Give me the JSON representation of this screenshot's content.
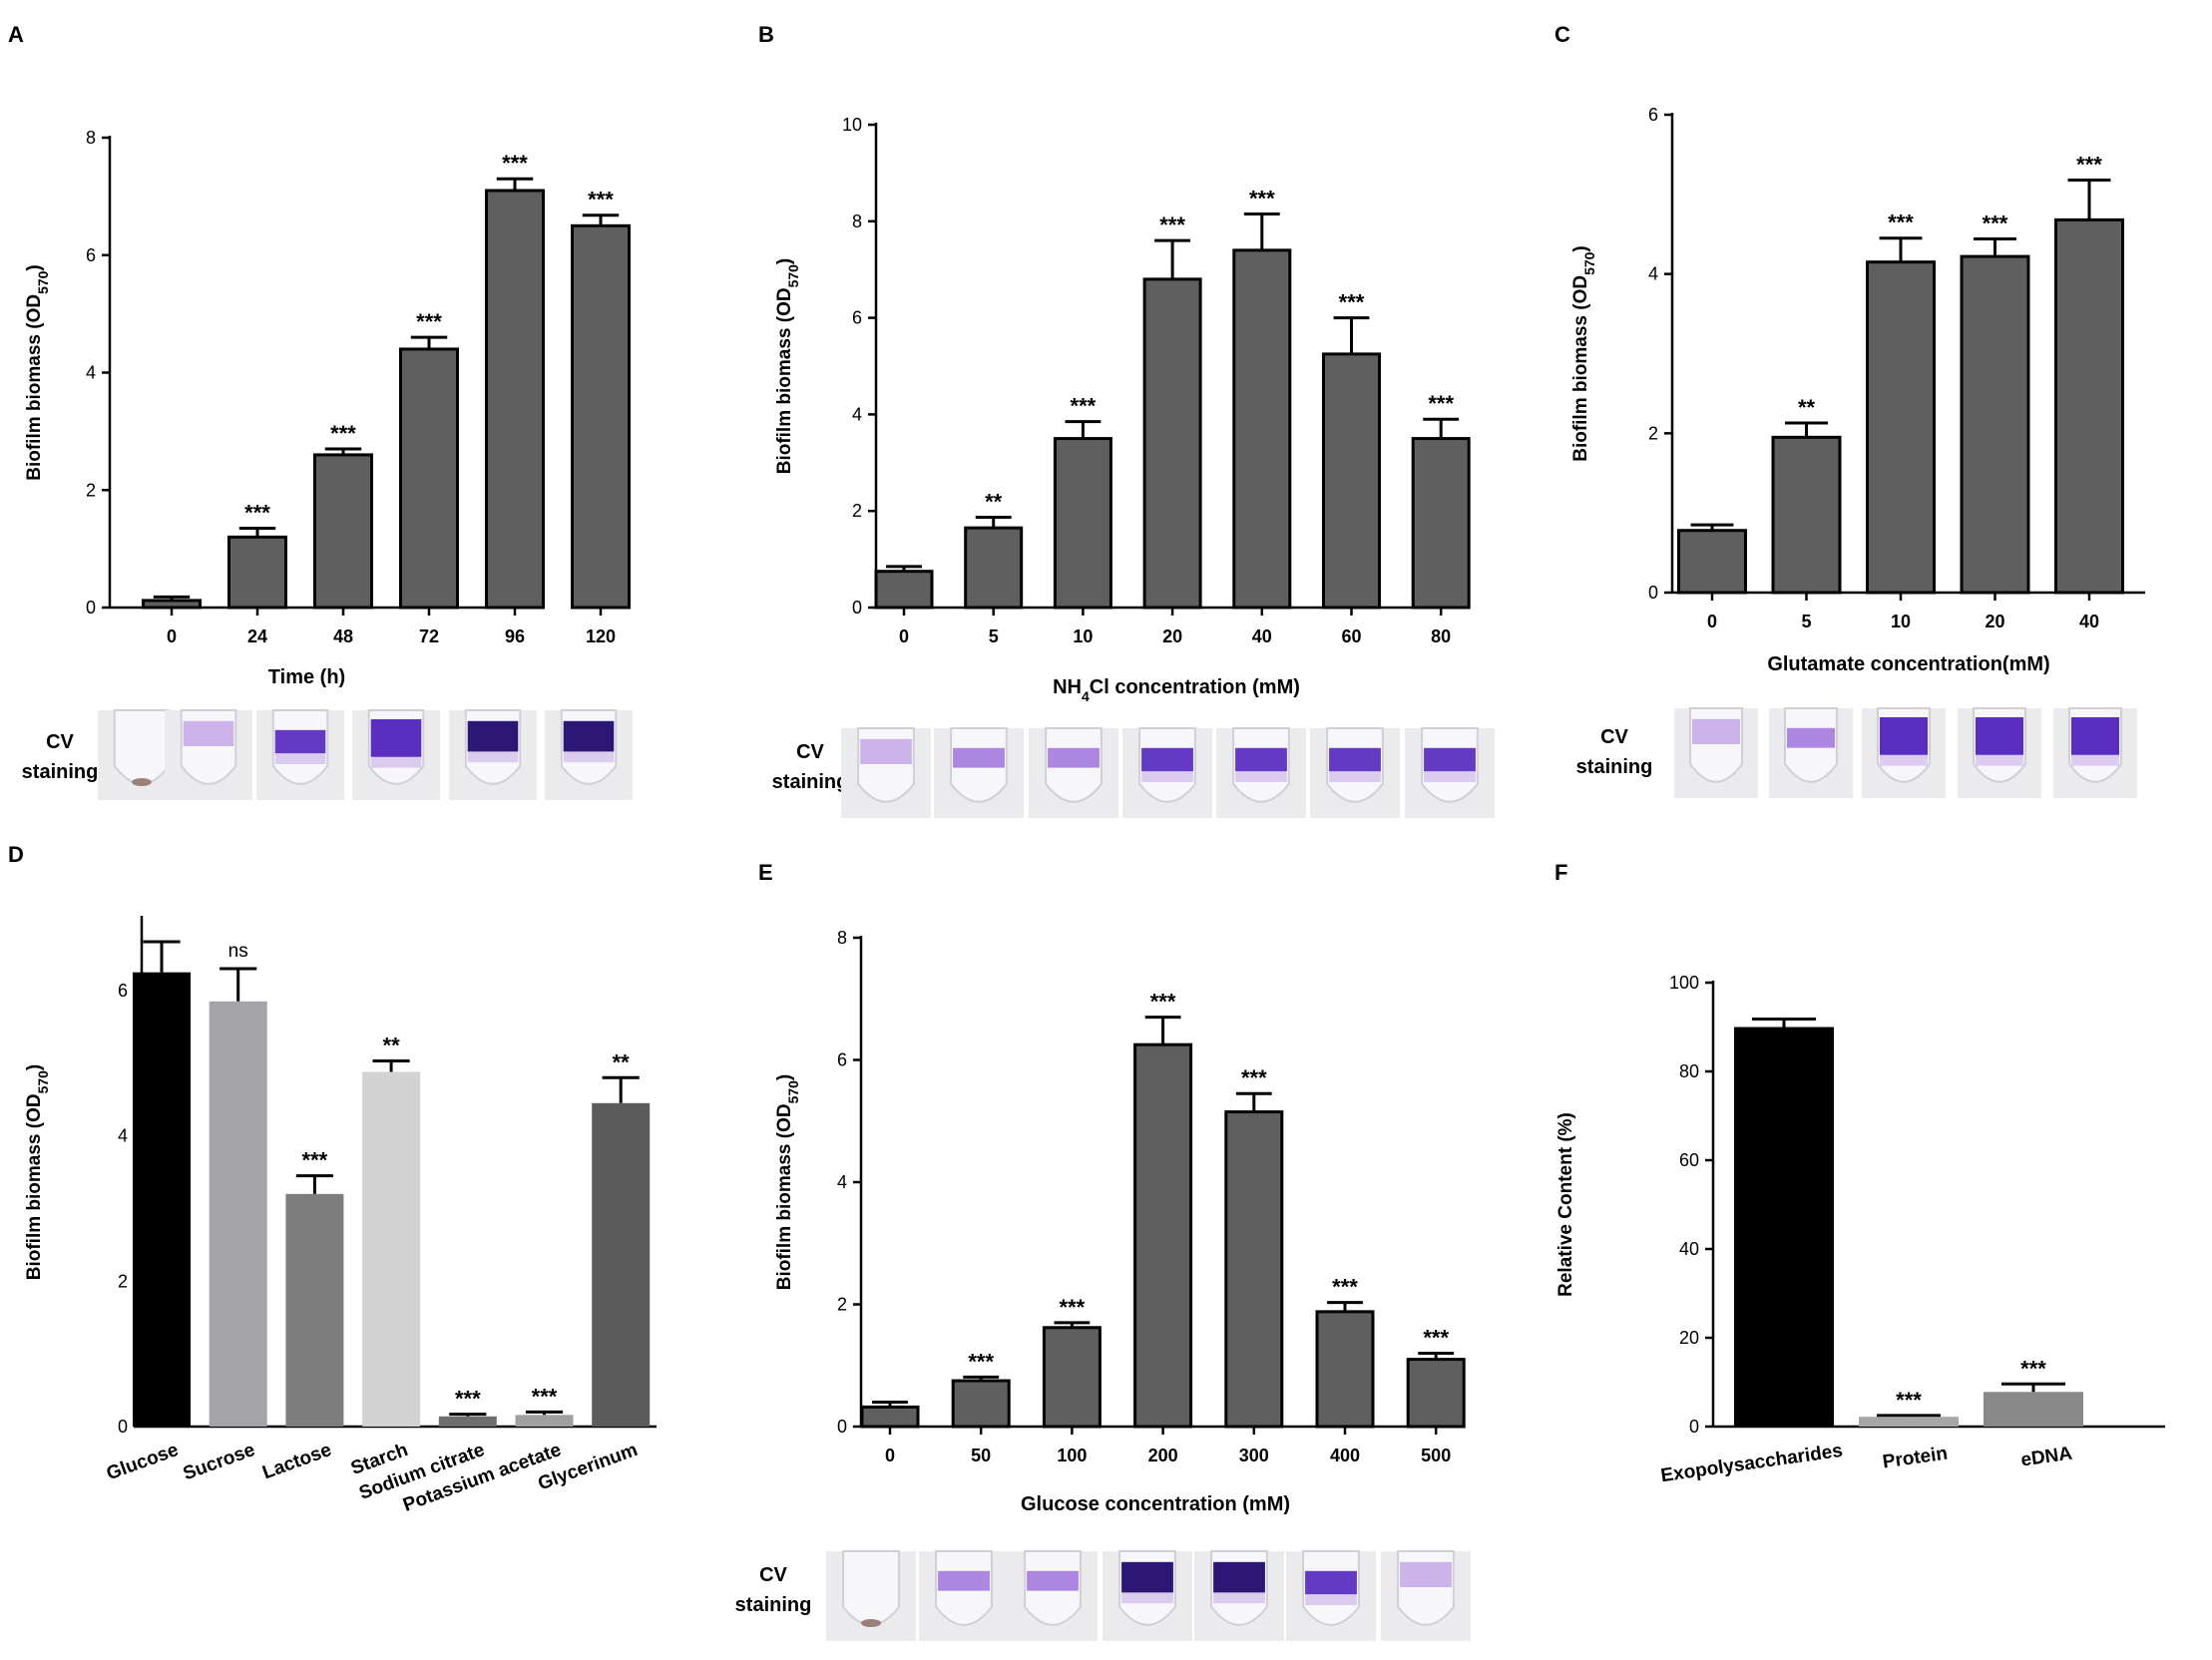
{
  "colors": {
    "bar_dark": "#5f5f5f",
    "glucose": "#000000",
    "sucrose": "#a3a3a8",
    "lactose": "#7d7d7d",
    "starch": "#d2d2d2",
    "citrate": "#6e6e6e",
    "acetate": "#a0a0a0",
    "glycerinum": "#5c5c5c",
    "eps": "#000000",
    "protein": "#a6a6a6",
    "edna": "#888888",
    "tube_bg": "#ebebee",
    "tube_glass": "#f7f7fa",
    "purple_dark": "#2c1676",
    "purple_mid": "#5a2fc0",
    "purple_light": "#a97fe0",
    "purple_faint": "#c4a8e6"
  },
  "staining_label": [
    "CV",
    "staining"
  ],
  "chart_data": [
    {
      "id": "A",
      "panel_label": "A",
      "type": "bar",
      "categories": [
        "0",
        "24",
        "48",
        "72",
        "96",
        "120"
      ],
      "values": [
        0.12,
        1.2,
        2.6,
        4.4,
        7.1,
        6.5
      ],
      "errors": [
        0.06,
        0.15,
        0.1,
        0.2,
        0.2,
        0.18
      ],
      "significance": [
        "",
        "***",
        "***",
        "***",
        "***",
        "***"
      ],
      "ylim": [
        0,
        8
      ],
      "yticks": [
        0,
        2,
        4,
        6,
        8
      ],
      "ylabel": "Biofilm biomass (OD570)",
      "ylabel_main": "Biofilm biomass (OD",
      "ylabel_sub": "570",
      "ylabel_end": ")",
      "xlabel": "Time (h)",
      "staining": [
        0,
        1,
        3,
        4,
        5,
        5
      ]
    },
    {
      "id": "B",
      "panel_label": "B",
      "type": "bar",
      "categories": [
        "0",
        "5",
        "10",
        "20",
        "40",
        "60",
        "80"
      ],
      "values": [
        0.75,
        1.65,
        3.5,
        6.8,
        7.4,
        5.25,
        3.5
      ],
      "errors": [
        0.1,
        0.22,
        0.35,
        0.8,
        0.75,
        0.75,
        0.4
      ],
      "significance": [
        "",
        "**",
        "***",
        "***",
        "***",
        "***",
        "***"
      ],
      "ylim": [
        0,
        10
      ],
      "yticks": [
        0,
        2,
        4,
        6,
        8,
        10
      ],
      "ylabel": "Biofilm biomass (OD570)",
      "ylabel_main": "Biofilm biomass (OD",
      "ylabel_sub": "570",
      "ylabel_end": ")",
      "xlabel": "NH4Cl concentration (mM)",
      "xlabel_pre": "NH",
      "xlabel_sub": "4",
      "xlabel_post": "Cl concentration (mM)",
      "staining": [
        1,
        2,
        2,
        3,
        3,
        3,
        3
      ]
    },
    {
      "id": "C",
      "panel_label": "C",
      "type": "bar",
      "categories": [
        "0",
        "5",
        "10",
        "20",
        "40"
      ],
      "values": [
        0.78,
        1.95,
        4.15,
        4.22,
        4.68
      ],
      "errors": [
        0.07,
        0.18,
        0.3,
        0.22,
        0.5
      ],
      "significance": [
        "",
        "**",
        "***",
        "***",
        "***"
      ],
      "ylim": [
        0,
        6
      ],
      "yticks": [
        0,
        2,
        4,
        6
      ],
      "ylabel": "Biofilm biomass (OD570)",
      "ylabel_main": "Biofilm biomass (OD",
      "ylabel_sub": "570",
      "ylabel_end": ")",
      "xlabel": "Glutamate concentration(mM)",
      "staining": [
        1,
        2,
        4,
        4,
        4
      ]
    },
    {
      "id": "D",
      "panel_label": "D",
      "type": "bar",
      "categories": [
        "Glucose",
        "Sucrose",
        "Lactose",
        "Starch",
        "Sodium citrate",
        "Potassium acetate",
        "Glycerinum"
      ],
      "values": [
        6.25,
        5.85,
        3.2,
        4.88,
        0.14,
        0.16,
        4.45
      ],
      "errors": [
        0.42,
        0.45,
        0.25,
        0.15,
        0.03,
        0.04,
        0.35
      ],
      "significance": [
        "",
        "ns",
        "***",
        "**",
        "***",
        "***",
        "**"
      ],
      "ylim": [
        0,
        7
      ],
      "yticks": [
        0,
        2,
        4,
        6
      ],
      "ylabel": "Biofilm biomass (OD570)",
      "ylabel_main": "Biofilm biomass (OD",
      "ylabel_sub": "570",
      "ylabel_end": ")",
      "xlabel": "",
      "bar_colors": [
        "glucose",
        "sucrose",
        "lactose",
        "starch",
        "citrate",
        "acetate",
        "glycerinum"
      ]
    },
    {
      "id": "E",
      "panel_label": "E",
      "type": "bar",
      "categories": [
        "0",
        "50",
        "100",
        "200",
        "300",
        "400",
        "500"
      ],
      "values": [
        0.32,
        0.75,
        1.62,
        6.25,
        5.15,
        1.88,
        1.1
      ],
      "errors": [
        0.08,
        0.06,
        0.08,
        0.45,
        0.3,
        0.15,
        0.1
      ],
      "significance": [
        "",
        "***",
        "***",
        "***",
        "***",
        "***",
        "***"
      ],
      "ylim": [
        0,
        8
      ],
      "yticks": [
        0,
        2,
        4,
        6,
        8
      ],
      "ylabel": "Biofilm biomass (OD570)",
      "ylabel_main": "Biofilm biomass (OD",
      "ylabel_sub": "570",
      "ylabel_end": ")",
      "xlabel": "Glucose concentration (mM)",
      "staining": [
        0,
        2,
        2,
        5,
        5,
        3,
        1
      ]
    },
    {
      "id": "F",
      "panel_label": "F",
      "type": "bar",
      "categories": [
        "Exopolysaccharides",
        "Protein",
        "eDNA"
      ],
      "values": [
        90,
        2.2,
        7.8
      ],
      "errors": [
        1.8,
        0.3,
        1.8
      ],
      "significance": [
        "",
        "***",
        "***"
      ],
      "ylim": [
        0,
        100
      ],
      "yticks": [
        0,
        20,
        40,
        60,
        80,
        100
      ],
      "ylabel": "Relative Content (%)",
      "xlabel": "",
      "bar_colors": [
        "eps",
        "protein",
        "edna"
      ]
    }
  ]
}
